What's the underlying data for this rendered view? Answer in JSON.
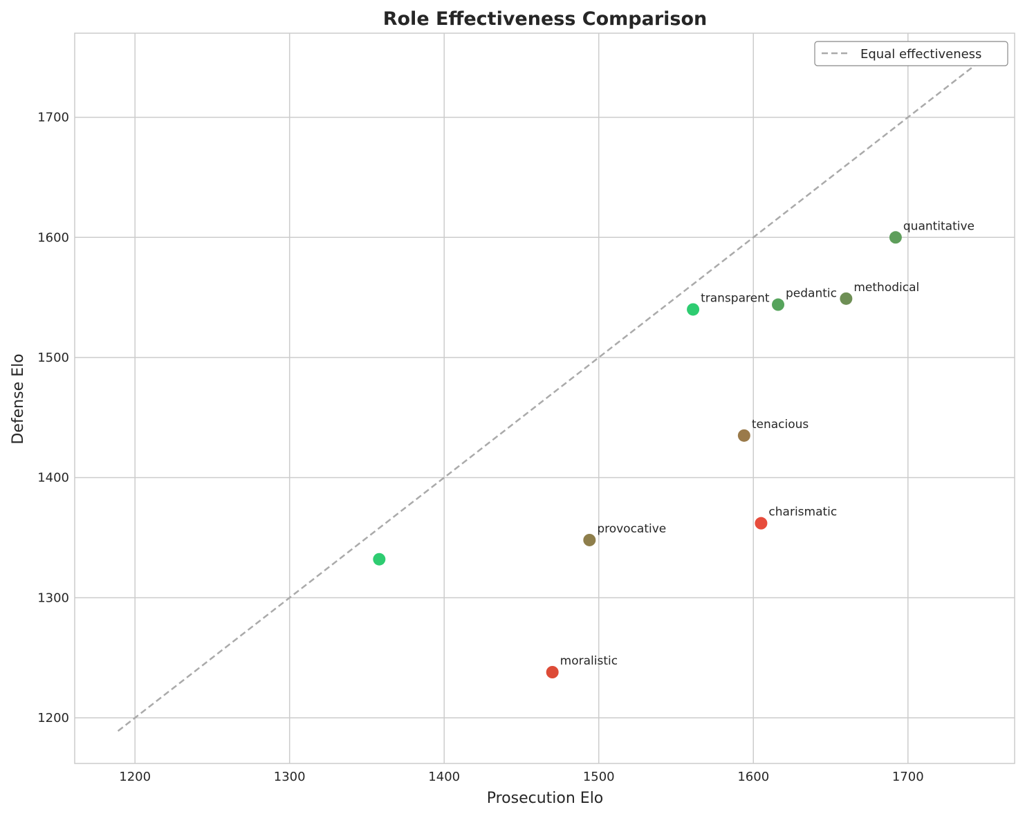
{
  "chart_data": {
    "type": "scatter",
    "title": "Role Effectiveness Comparison",
    "xlabel": "Prosecution Elo",
    "ylabel": "Defense Elo",
    "xlim": [
      1161,
      1769
    ],
    "ylim": [
      1162,
      1770
    ],
    "xticks": [
      1200,
      1300,
      1400,
      1500,
      1600,
      1700
    ],
    "yticks": [
      1200,
      1300,
      1400,
      1500,
      1600,
      1700
    ],
    "grid": true,
    "legend": {
      "position": "top-right",
      "entries": [
        {
          "label": "Equal effectiveness",
          "style": "dashed",
          "color": "#aaaaaa"
        }
      ]
    },
    "reference_line": {
      "label": "Equal effectiveness",
      "x": [
        1189,
        1749
      ],
      "y": [
        1189,
        1749
      ],
      "color": "#aaaaaa"
    },
    "points": [
      {
        "label": "quantitative",
        "x": 1692,
        "y": 1600,
        "color": "#5e9e5b"
      },
      {
        "label": "methodical",
        "x": 1660,
        "y": 1549,
        "color": "#6e8f55"
      },
      {
        "label": "pedantic",
        "x": 1616,
        "y": 1544,
        "color": "#56a45c"
      },
      {
        "label": "transparent",
        "x": 1561,
        "y": 1540,
        "color": "#2ecc71"
      },
      {
        "label": "tenacious",
        "x": 1594,
        "y": 1435,
        "color": "#9a7a4a"
      },
      {
        "label": "charismatic",
        "x": 1605,
        "y": 1362,
        "color": "#e74c3c"
      },
      {
        "label": "provocative",
        "x": 1494,
        "y": 1348,
        "color": "#8e7e4b"
      },
      {
        "label": "",
        "x": 1358,
        "y": 1332,
        "color": "#2ecc71"
      },
      {
        "label": "moralistic",
        "x": 1470,
        "y": 1238,
        "color": "#dd4b37"
      }
    ]
  }
}
